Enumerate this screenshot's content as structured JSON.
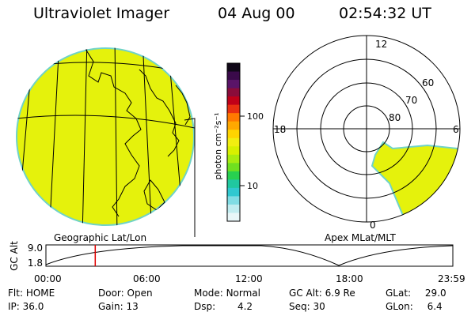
{
  "header": {
    "title": "Ultraviolet Imager",
    "date": "04 Aug 00",
    "time": "02:54:32 UT"
  },
  "colors": {
    "fill": "#e5f20c",
    "limb": "#6fd3c8",
    "line": "#000000",
    "marker": "#e00000"
  },
  "colorbar": {
    "label": "photon cm⁻²s⁻¹",
    "ticks": [
      "100",
      "10"
    ],
    "colors": [
      "#100818",
      "#3a0a4a",
      "#5a1468",
      "#8a0c3a",
      "#c00018",
      "#e83010",
      "#ff7a00",
      "#ffa800",
      "#ffd400",
      "#f2ee10",
      "#d8f000",
      "#a8ec10",
      "#70e020",
      "#28d050",
      "#20c8a0",
      "#30c8d0",
      "#80dce4",
      "#c0ecf0",
      "#e8f6f8"
    ]
  },
  "left_panel": {
    "caption": "Geographic Lat/Lon"
  },
  "right_panel": {
    "caption": "Apex MLat/MLT",
    "mlt_labels": {
      "top": "12",
      "left": "18",
      "right": "6",
      "bottom": "0"
    },
    "lat_labels": [
      "60",
      "70",
      "80"
    ]
  },
  "altitude_plot": {
    "ylabel": "GC Alt",
    "yticks": [
      "9.0",
      "1.8"
    ],
    "xticks": [
      "00:00",
      "06:00",
      "12:00",
      "18:00",
      "23:59"
    ],
    "current_time_hours": 2.91
  },
  "status": {
    "row1": [
      {
        "label": "Flt:",
        "value": "HOME"
      },
      {
        "label": "Door:",
        "value": "Open"
      },
      {
        "label": "Mode:",
        "value": "Normal"
      },
      {
        "label": "GC Alt:",
        "value": "6.9 Re"
      },
      {
        "label": "GLat:",
        "value": "29.0"
      }
    ],
    "row2": [
      {
        "label": "IP:",
        "value": "36.0"
      },
      {
        "label": "Gain:",
        "value": "13"
      },
      {
        "label": "Dsp:",
        "value": "4.2"
      },
      {
        "label": "Seq:",
        "value": "30"
      },
      {
        "label": "GLon:",
        "value": "6.4"
      }
    ]
  }
}
